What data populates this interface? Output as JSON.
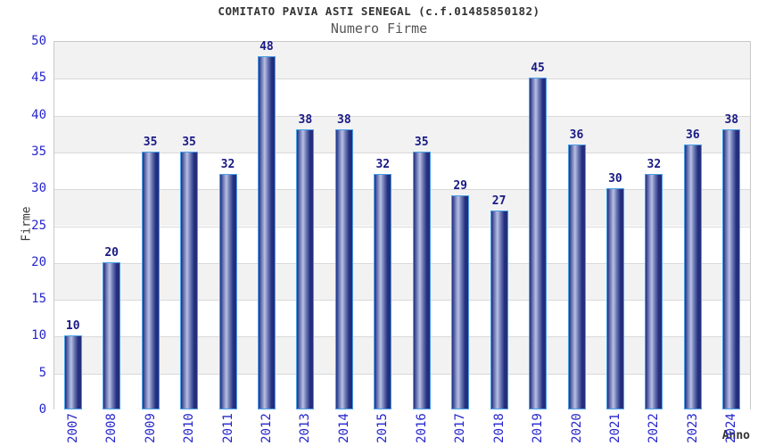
{
  "chart_data": {
    "type": "bar",
    "title": "COMITATO PAVIA ASTI SENEGAL (c.f.01485850182)",
    "subtitle": "Numero Firme",
    "xlabel": "Anno",
    "ylabel": "Firme",
    "categories": [
      "2007",
      "2008",
      "2009",
      "2010",
      "2011",
      "2012",
      "2013",
      "2014",
      "2015",
      "2016",
      "2017",
      "2018",
      "2019",
      "2020",
      "2021",
      "2022",
      "2023",
      "2024"
    ],
    "values": [
      10,
      20,
      35,
      35,
      32,
      48,
      38,
      38,
      32,
      35,
      29,
      27,
      45,
      36,
      30,
      32,
      36,
      38
    ],
    "ylim": [
      0,
      50
    ],
    "ytick_step": 5,
    "yticks": [
      0,
      5,
      10,
      15,
      20,
      25,
      30,
      35,
      40,
      45,
      50
    ],
    "grid": true,
    "legend": "none",
    "colors": {
      "bar_dark": "#232e7d",
      "bar_mid": "#6b77b4",
      "bar_light": "#b8c0e2",
      "bar_border": "#4aa0e8",
      "tick_label": "#2525cc",
      "value_label": "#191985",
      "title": "#333333",
      "subtitle": "#555555",
      "axis_label": "#3a3a3a",
      "band_gray": "#f2f2f2",
      "band_white": "#ffffff",
      "gridline": "#d9d9d9",
      "plot_border": "#c9c9c9"
    }
  }
}
